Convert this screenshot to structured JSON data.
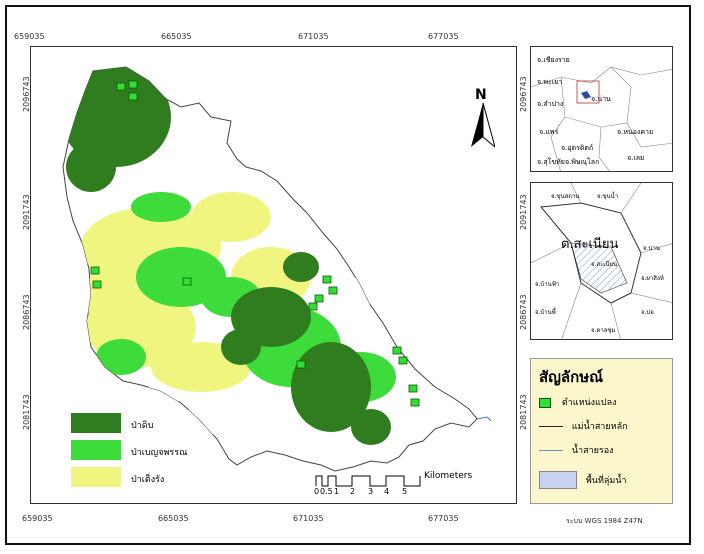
{
  "main_map": {
    "x_ticks_top": [
      "659035",
      "665035",
      "671035",
      "677035"
    ],
    "x_ticks_bottom": [
      "659035",
      "665035",
      "671035",
      "677035"
    ],
    "y_ticks_left": [
      "2096743",
      "2091743",
      "2086743",
      "2081743"
    ],
    "y_ticks_right": [
      "2096743",
      "2091743",
      "2086743",
      "2081743"
    ],
    "north_label": "N",
    "forest_legend": [
      {
        "label": "ป่าดิบ",
        "color": "#2f7d1e"
      },
      {
        "label": "ป่าเบญจพรรณ",
        "color": "#3ddc3a"
      },
      {
        "label": "ป่าเต็งรัง",
        "color": "#f0f580"
      }
    ],
    "scale": {
      "labels": [
        "0",
        "0.5",
        "1",
        "2",
        "3",
        "4",
        "5"
      ],
      "unit": "Kilometers"
    }
  },
  "inset_province": {
    "labels": [
      "จ.เชียงราย",
      "จ.พะเยา",
      "จ.น่าน",
      "จ.ลำปาง",
      "จ.แพร่",
      "จ.หนองคาย",
      "จ.อุตรดิตถ์",
      "จ.สุโขทัย",
      "จ.พิษณุโลก",
      "จ.เลย"
    ]
  },
  "inset_district": {
    "title": "ต.สะเนียน",
    "labels": [
      "จ.ขุนสถาน",
      "จ.ขุนน้ำ",
      "จ.บ้านฟ้า",
      "จ.ผาสิงห์",
      "จ.สะเนียน",
      "จ.น่าน",
      "จ.บ่อ",
      "จ.บ้านพี้",
      "จ.ตาลชุม"
    ]
  },
  "legend": {
    "title": "สัญลักษณ์",
    "items": [
      {
        "label": "ตำแหน่งแปลง",
        "icon": "plot-marker-icon"
      },
      {
        "label": "แม่น้ำสายหลัก",
        "icon": "main-river-line-icon"
      },
      {
        "label": "น้ำสายรอง",
        "icon": "minor-stream-line-icon"
      },
      {
        "label": "พื้นที่ลุ่มน้ำ",
        "icon": "watershed-area-icon"
      }
    ]
  },
  "crs": "ระบบ WGS 1984 Z47N",
  "colors": {
    "dense_forest": "#2f7d1e",
    "mixed_forest": "#3ddc3a",
    "dry_dipterocarp": "#f0f580",
    "watershed": "#c7d3f0",
    "legend_bg": "#fbf6cc"
  }
}
